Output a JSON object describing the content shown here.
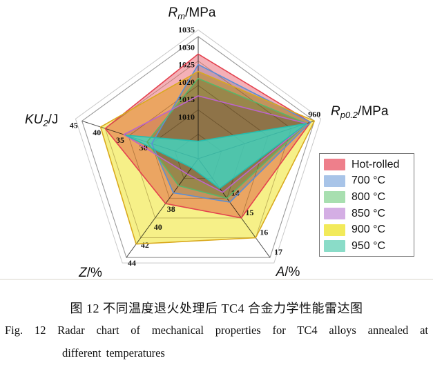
{
  "captions": {
    "zh": "图 12  不同温度退火处理后 TC4 合金力学性能雷达图",
    "en_line1": "Fig. 12   Radar chart of mechanical properties for TC4 alloys annealed at",
    "en_line2": "different temperatures"
  },
  "legend": {
    "items": [
      {
        "label": "Hot-rolled",
        "chip_color": "#ee7f8b"
      },
      {
        "label": "700 °C",
        "chip_color": "#a8c4e8"
      },
      {
        "label": "800 °C",
        "chip_color": "#a8dfb0"
      },
      {
        "label": "850 °C",
        "chip_color": "#d4aee4"
      },
      {
        "label": "900 °C",
        "chip_color": "#f2ea5a"
      },
      {
        "label": "950 °C",
        "chip_color": "#8adcc8"
      }
    ]
  },
  "chart_data": {
    "type": "radar",
    "axes": [
      {
        "id": "Rm",
        "title": {
          "it": "R",
          "sub": "m",
          "post": "/MPa"
        },
        "min": 1000,
        "max": 1035,
        "ticks": [
          1035,
          1030,
          1025,
          1020,
          1015,
          1010
        ]
      },
      {
        "id": "Rp02",
        "title": {
          "it": "R",
          "sub": "p0.2",
          "post": "/MPa"
        },
        "min": 930,
        "max": 960,
        "ticks": [
          960
        ]
      },
      {
        "id": "A",
        "title": {
          "it": "A",
          "sub": "",
          "post": "/%"
        },
        "min": 12,
        "max": 17,
        "ticks": [
          17,
          16,
          15,
          14
        ]
      },
      {
        "id": "Z",
        "title": {
          "it": "Z",
          "sub": "",
          "post": "/%"
        },
        "min": 33,
        "max": 44,
        "ticks": [
          44,
          42,
          40,
          38
        ]
      },
      {
        "id": "KU2",
        "title": {
          "it": "KU",
          "sub": "2",
          "post": "/J"
        },
        "min": 20,
        "max": 45,
        "ticks": [
          45,
          40,
          35,
          30
        ]
      }
    ],
    "series": [
      {
        "name": "Hot-rolled",
        "fill": "#ee7f8b",
        "stroke": "#e4424f",
        "values": {
          "Rm": 1030,
          "Rp02": 959,
          "A": 15,
          "Z": 38,
          "KU2": 40
        }
      },
      {
        "name": "700 °C",
        "fill": "#a8c4e8",
        "stroke": "#5b8fd6",
        "values": {
          "Rm": 1027,
          "Rp02": 959,
          "A": 14.2,
          "Z": 36.8,
          "KU2": 30
        }
      },
      {
        "name": "800 °C",
        "fill": "#a8dfb0",
        "stroke": "#56b76a",
        "values": {
          "Rm": 1023,
          "Rp02": 958,
          "A": 14,
          "Z": 36,
          "KU2": 31
        }
      },
      {
        "name": "850 °C",
        "fill": "#d4aee4",
        "stroke": "#bc64cc",
        "values": {
          "Rm": 1018,
          "Rp02": 958,
          "A": 13.7,
          "Z": 34.7,
          "KU2": 36
        }
      },
      {
        "name": "900 °C",
        "fill": "#f2ea5a",
        "stroke": "#d9a91e",
        "values": {
          "Rm": 1025,
          "Rp02": 960,
          "A": 16,
          "Z": 42.5,
          "KU2": 41
        }
      },
      {
        "name": "950 °C",
        "fill": "#40d8c4",
        "stroke": "#26bdae",
        "values": {
          "Rm": 1005,
          "Rp02": 958,
          "A": 13.5,
          "Z": 34,
          "KU2": 35.5
        }
      }
    ],
    "grid": {
      "ring_fractions": [
        0.2,
        0.4,
        0.6,
        0.8,
        1.0
      ],
      "legend_position": "right"
    }
  }
}
